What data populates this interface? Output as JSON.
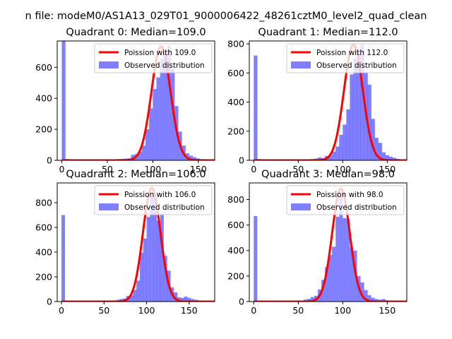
{
  "figure": {
    "suptitle": "n file: modeM0/AS1A13_029T01_9000006422_48261cztM0_level2_quad_clean"
  },
  "colors": {
    "poisson": "#ff0000",
    "observed": "#0000ff",
    "observed_alpha": 0.5,
    "axis": "#000000",
    "background": "#ffffff"
  },
  "chart_data": [
    {
      "type": "bar",
      "title": "Quadrant 0: Median=109.0",
      "xlim": [
        -5,
        168
      ],
      "ylim": [
        0,
        770
      ],
      "xticks": [
        0,
        50,
        100,
        150
      ],
      "yticks": [
        0,
        200,
        400,
        600
      ],
      "legend": {
        "placement": "top-right",
        "entries": [
          "Poission with 109.0",
          "Observed distribution"
        ]
      },
      "poisson_mean": 109,
      "poisson_peak": 735,
      "bin_width": 4.05,
      "bins": [
        [
          0,
          770
        ],
        [
          4,
          9
        ],
        [
          8,
          5
        ],
        [
          12,
          3
        ],
        [
          16,
          3
        ],
        [
          20,
          3
        ],
        [
          24,
          2
        ],
        [
          28,
          3
        ],
        [
          32,
          2
        ],
        [
          36,
          2
        ],
        [
          40,
          3
        ],
        [
          44,
          3
        ],
        [
          48,
          5
        ],
        [
          52,
          4
        ],
        [
          56,
          6
        ],
        [
          60,
          8
        ],
        [
          64,
          9
        ],
        [
          68,
          11
        ],
        [
          72,
          13
        ],
        [
          76,
          35
        ],
        [
          80,
          40
        ],
        [
          84,
          55
        ],
        [
          88,
          95
        ],
        [
          92,
          200
        ],
        [
          96,
          335
        ],
        [
          100,
          460
        ],
        [
          104,
          535
        ],
        [
          108,
          655
        ],
        [
          112,
          695
        ],
        [
          116,
          740
        ],
        [
          120,
          590
        ],
        [
          124,
          350
        ],
        [
          128,
          185
        ],
        [
          132,
          95
        ],
        [
          136,
          45
        ],
        [
          140,
          30
        ],
        [
          144,
          20
        ],
        [
          148,
          12
        ],
        [
          152,
          8
        ],
        [
          156,
          5
        ]
      ]
    },
    {
      "type": "bar",
      "title": "Quadrant 1: Median=112.0",
      "xlim": [
        -5,
        172
      ],
      "ylim": [
        0,
        820
      ],
      "xticks": [
        0,
        50,
        100,
        150
      ],
      "yticks": [
        0,
        200,
        400,
        600,
        800
      ],
      "legend": {
        "placement": "top-right",
        "entries": [
          "Poission with 112.0",
          "Observed distribution"
        ]
      },
      "poisson_mean": 112,
      "poisson_peak": 795,
      "bin_width": 4.15,
      "bins": [
        [
          0,
          720
        ],
        [
          4,
          9
        ],
        [
          8,
          5
        ],
        [
          12,
          4
        ],
        [
          16,
          3
        ],
        [
          20,
          3
        ],
        [
          24,
          3
        ],
        [
          28,
          3
        ],
        [
          32,
          3
        ],
        [
          36,
          3
        ],
        [
          40,
          4
        ],
        [
          44,
          4
        ],
        [
          48,
          4
        ],
        [
          52,
          5
        ],
        [
          56,
          6
        ],
        [
          60,
          7
        ],
        [
          64,
          9
        ],
        [
          68,
          12
        ],
        [
          72,
          20
        ],
        [
          76,
          15
        ],
        [
          80,
          30
        ],
        [
          84,
          35
        ],
        [
          88,
          60
        ],
        [
          92,
          95
        ],
        [
          96,
          175
        ],
        [
          100,
          245
        ],
        [
          104,
          350
        ],
        [
          108,
          590
        ],
        [
          112,
          700
        ],
        [
          116,
          740
        ],
        [
          120,
          795
        ],
        [
          124,
          600
        ],
        [
          128,
          520
        ],
        [
          132,
          285
        ],
        [
          136,
          155
        ],
        [
          140,
          120
        ],
        [
          144,
          55
        ],
        [
          148,
          35
        ],
        [
          152,
          25
        ],
        [
          156,
          18
        ],
        [
          160,
          10
        ],
        [
          164,
          6
        ]
      ]
    },
    {
      "type": "bar",
      "title": "Quadrant 2: Median=106.0",
      "xlim": [
        -5,
        180
      ],
      "ylim": [
        0,
        960
      ],
      "xticks": [
        0,
        50,
        100,
        150
      ],
      "yticks": [
        0,
        200,
        400,
        600,
        800
      ],
      "legend": {
        "placement": "top-right",
        "entries": [
          "Poission with 106.0",
          "Observed distribution"
        ]
      },
      "poisson_mean": 106,
      "poisson_peak": 920,
      "bin_width": 4.15,
      "bins": [
        [
          0,
          700
        ],
        [
          4,
          9
        ],
        [
          8,
          5
        ],
        [
          12,
          4
        ],
        [
          16,
          3
        ],
        [
          20,
          3
        ],
        [
          24,
          3
        ],
        [
          28,
          3
        ],
        [
          32,
          3
        ],
        [
          36,
          3
        ],
        [
          40,
          4
        ],
        [
          44,
          4
        ],
        [
          48,
          5
        ],
        [
          52,
          5
        ],
        [
          56,
          5
        ],
        [
          60,
          9
        ],
        [
          64,
          14
        ],
        [
          68,
          20
        ],
        [
          72,
          25
        ],
        [
          76,
          45
        ],
        [
          80,
          50
        ],
        [
          84,
          95
        ],
        [
          88,
          170
        ],
        [
          92,
          395
        ],
        [
          96,
          510
        ],
        [
          100,
          685
        ],
        [
          104,
          845
        ],
        [
          108,
          840
        ],
        [
          112,
          655
        ],
        [
          116,
          710
        ],
        [
          120,
          370
        ],
        [
          124,
          250
        ],
        [
          128,
          115
        ],
        [
          132,
          75
        ],
        [
          136,
          35
        ],
        [
          140,
          30
        ],
        [
          144,
          40
        ],
        [
          148,
          30
        ],
        [
          152,
          20
        ],
        [
          156,
          15
        ],
        [
          160,
          10
        ],
        [
          164,
          8
        ],
        [
          168,
          5
        ]
      ]
    },
    {
      "type": "bar",
      "title": "Quadrant 3: Median=98.0",
      "xlim": [
        -5,
        172
      ],
      "ylim": [
        0,
        930
      ],
      "xticks": [
        0,
        50,
        100,
        150
      ],
      "yticks": [
        0,
        200,
        400,
        600,
        800
      ],
      "legend": {
        "placement": "top-right",
        "entries": [
          "Poission with 98.0",
          "Observed distribution"
        ]
      },
      "poisson_mean": 98,
      "poisson_peak": 885,
      "bin_width": 4.0,
      "bins": [
        [
          0,
          670
        ],
        [
          4,
          8
        ],
        [
          8,
          5
        ],
        [
          12,
          4
        ],
        [
          16,
          3
        ],
        [
          20,
          3
        ],
        [
          24,
          3
        ],
        [
          28,
          3
        ],
        [
          32,
          3
        ],
        [
          36,
          3
        ],
        [
          40,
          4
        ],
        [
          44,
          4
        ],
        [
          48,
          5
        ],
        [
          52,
          8
        ],
        [
          56,
          15
        ],
        [
          60,
          22
        ],
        [
          64,
          35
        ],
        [
          68,
          45
        ],
        [
          72,
          95
        ],
        [
          76,
          170
        ],
        [
          80,
          270
        ],
        [
          84,
          365
        ],
        [
          88,
          430
        ],
        [
          92,
          665
        ],
        [
          96,
          825
        ],
        [
          100,
          655
        ],
        [
          104,
          650
        ],
        [
          108,
          425
        ],
        [
          112,
          400
        ],
        [
          116,
          200
        ],
        [
          120,
          150
        ],
        [
          124,
          90
        ],
        [
          128,
          50
        ],
        [
          132,
          30
        ],
        [
          136,
          20
        ],
        [
          140,
          15
        ],
        [
          144,
          20
        ],
        [
          148,
          10
        ],
        [
          152,
          8
        ],
        [
          156,
          5
        ]
      ]
    }
  ]
}
